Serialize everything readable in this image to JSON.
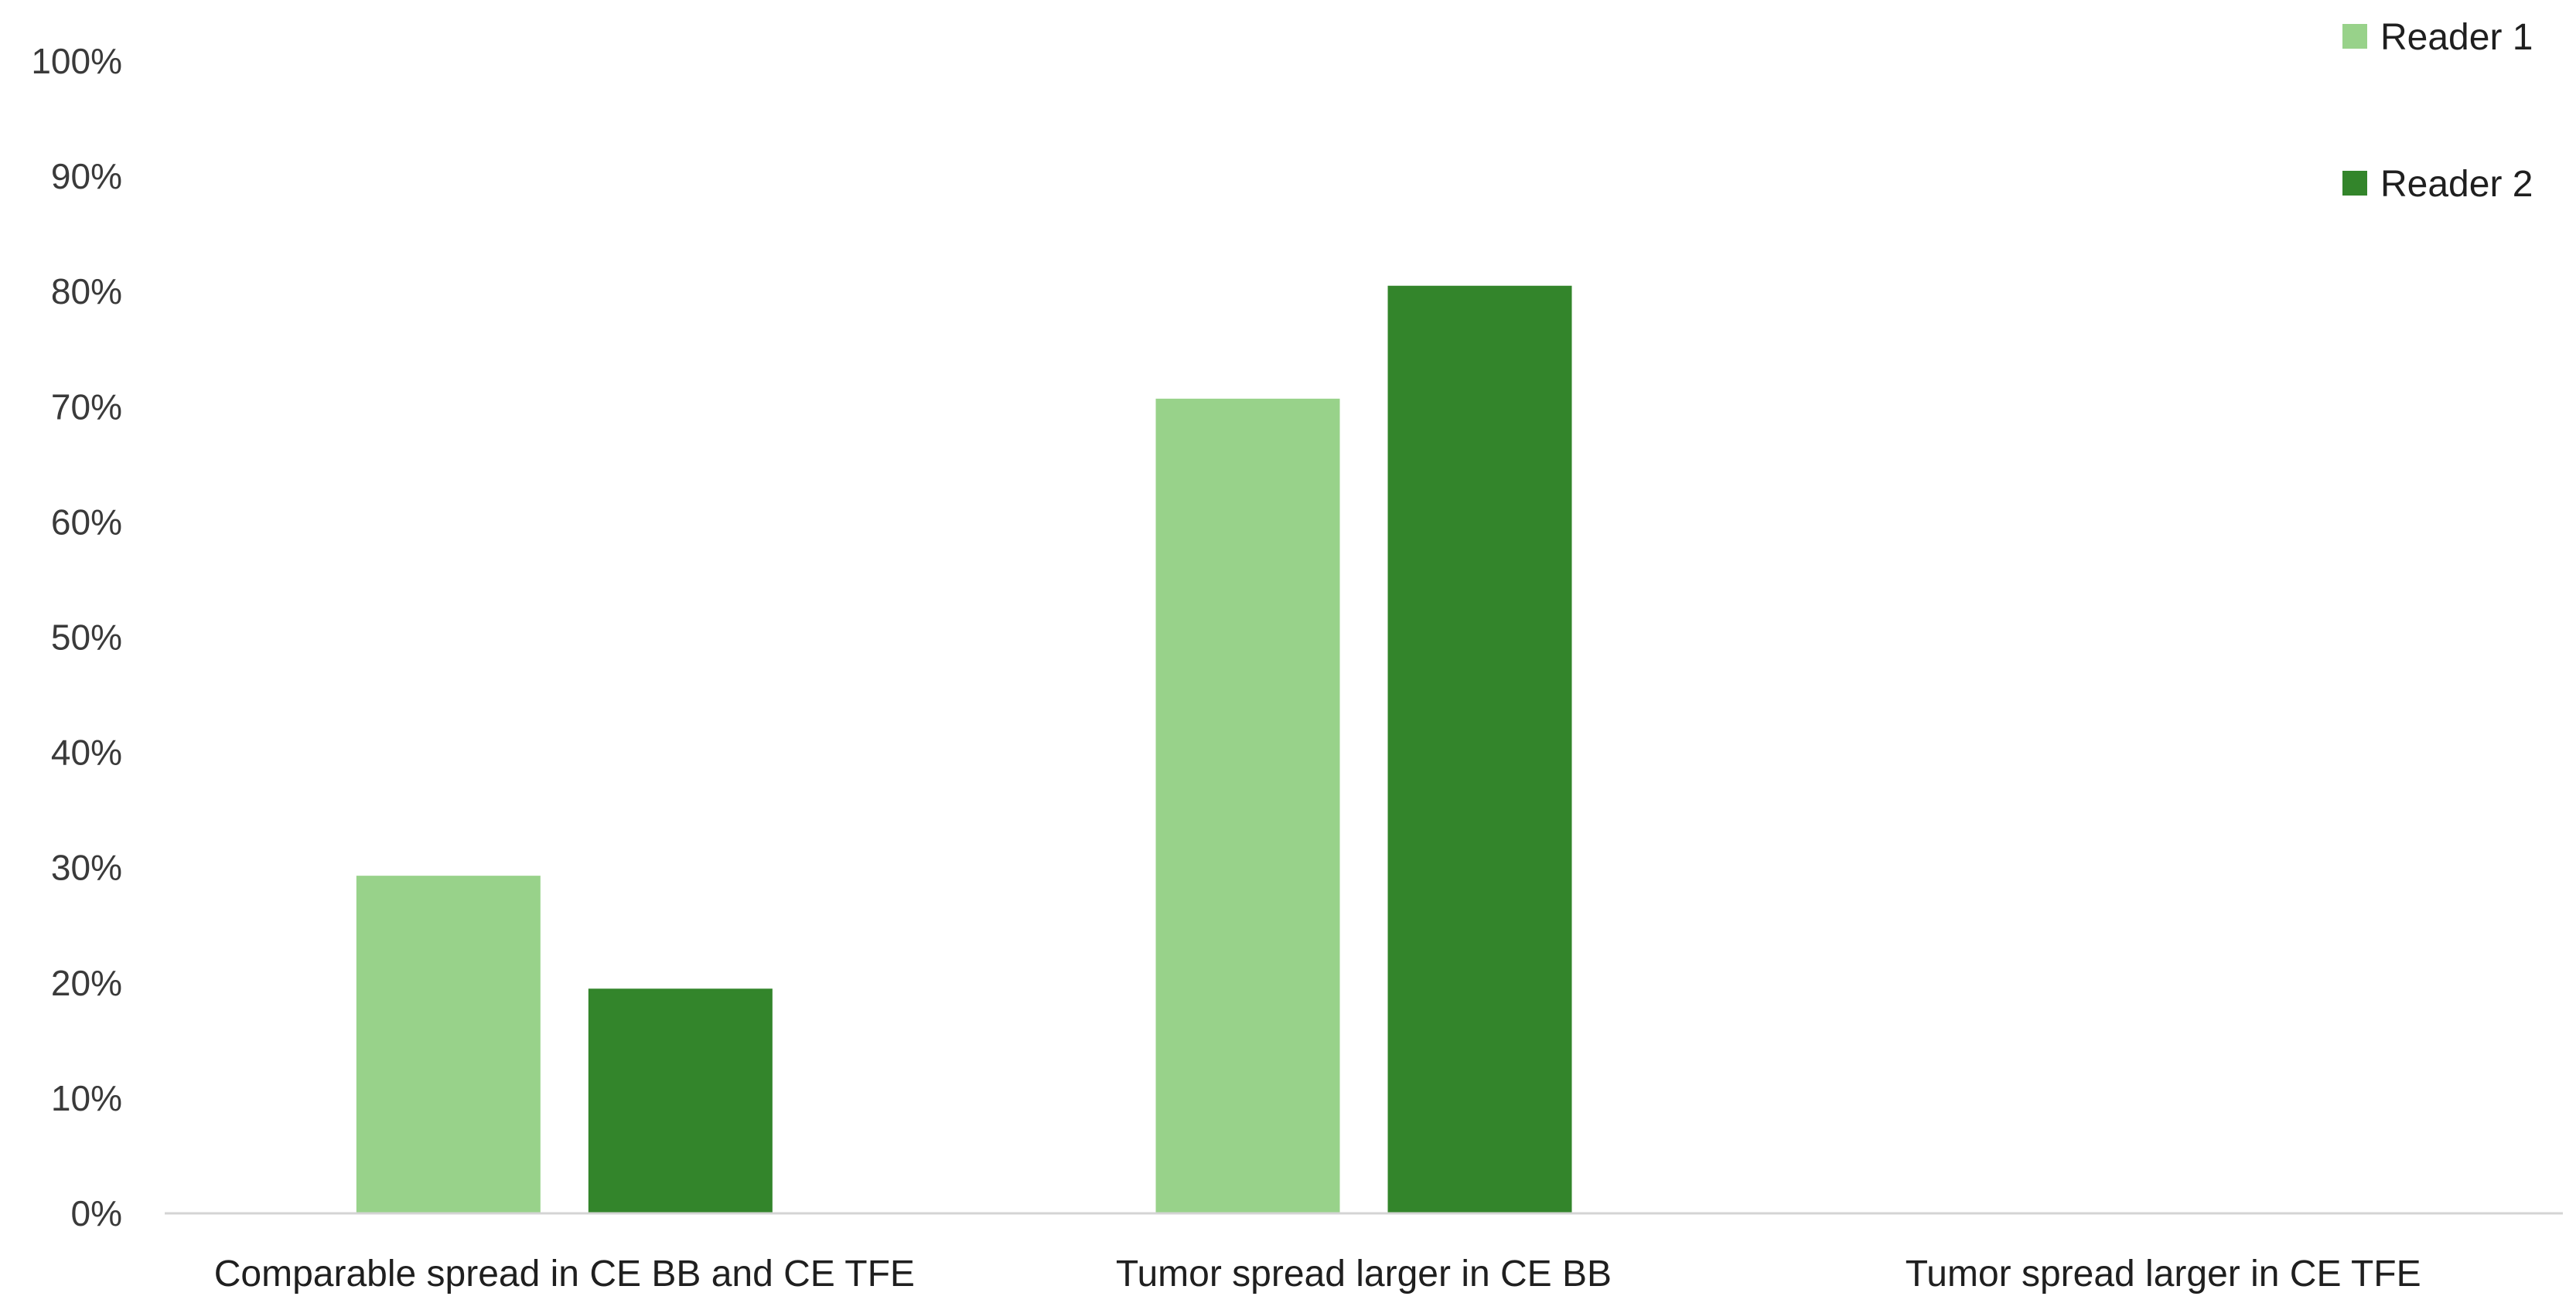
{
  "chart_data": {
    "type": "bar",
    "categories": [
      "Comparable spread in CE BB and CE TFE",
      "Tumor spread larger in CE BB",
      "Tumor spread larger in CE TFE"
    ],
    "series": [
      {
        "name": "Reader 1",
        "color": "#98d28a",
        "values": [
          29.3,
          70.7,
          0
        ]
      },
      {
        "name": "Reader 2",
        "color": "#33852b",
        "values": [
          19.5,
          80.5,
          0
        ]
      }
    ],
    "ylim": [
      0,
      100
    ],
    "yticks": [
      0,
      10,
      20,
      30,
      40,
      50,
      60,
      70,
      80,
      90,
      100
    ],
    "ytick_format": "percent",
    "grid": false,
    "legend_position": "top-right",
    "title": "",
    "xlabel": "",
    "ylabel": ""
  }
}
